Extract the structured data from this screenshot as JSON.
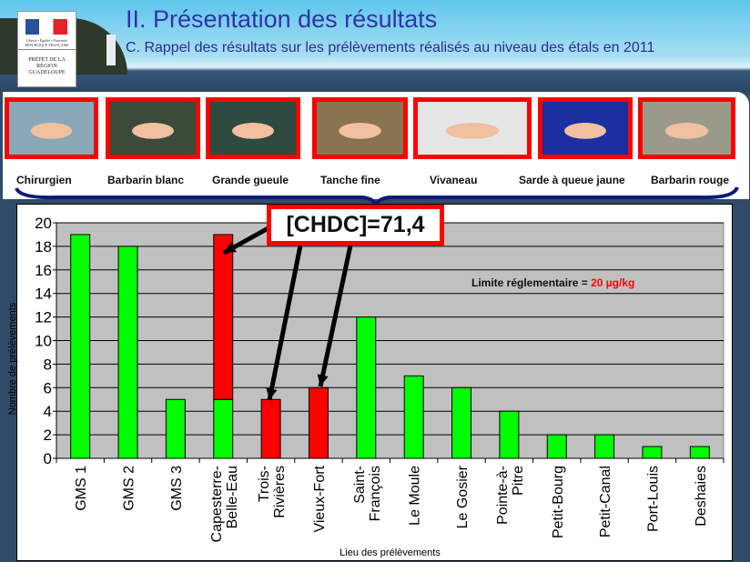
{
  "header": {
    "title": "II. Présentation des résultats",
    "subtitle": "C. Rappel des résultats sur les prélèvements réalisés au niveau des étals en 2011",
    "logo": {
      "republique": "Liberté • Égalité • Fraternité RÉPUBLIQUE FRANÇAISE",
      "prefet": "PRÉFET DE LA RÉGION GUADELOUPE"
    }
  },
  "fish": [
    {
      "label": "Chirurgien",
      "color": "#8aa7b8"
    },
    {
      "label": "Barbarin blanc",
      "color": "#3c4a3a"
    },
    {
      "label": "Grande gueule",
      "color": "#2f4a40"
    },
    {
      "label": "Tanche fine",
      "color": "#8a7350"
    },
    {
      "label": "Vivaneau",
      "color": "#e6e6e6"
    },
    {
      "label": "Sarde à queue jaune",
      "color": "#1a2fa0"
    },
    {
      "label": "Barbarin rouge",
      "color": "#9a9a8a"
    }
  ],
  "callout": "[CHDC]=71,4",
  "chart_data": {
    "type": "bar",
    "stacked": true,
    "categories": [
      "GMS 1",
      "GMS 2",
      "GMS 3",
      "Capesterre-Belle-Eau",
      "Trois-Rivières",
      "Vieux-Fort",
      "Saint-François",
      "Le Moule",
      "Le Gosier",
      "Pointe-à-Pitre",
      "Petit-Bourg",
      "Petit-Canal",
      "Port-Louis",
      "Deshaies"
    ],
    "tick_labels": [
      [
        "GMS 1"
      ],
      [
        "GMS 2"
      ],
      [
        "GMS 3"
      ],
      [
        "Capesterre-",
        "Belle-Eau"
      ],
      [
        "Trois-",
        "Rivières"
      ],
      [
        "Vieux-Fort"
      ],
      [
        "Saint-",
        "François"
      ],
      [
        "Le Moule"
      ],
      [
        "Le Gosier"
      ],
      [
        "Pointe-à-",
        "Pitre"
      ],
      [
        "Petit-Bourg"
      ],
      [
        "Petit-Canal"
      ],
      [
        "Port-Louis"
      ],
      [
        "Deshaies"
      ]
    ],
    "series": [
      {
        "color": "#00ff00",
        "values": [
          19,
          18,
          5,
          5,
          0,
          0,
          12,
          7,
          6,
          4,
          2,
          2,
          1,
          1
        ]
      },
      {
        "color": "#ff0000",
        "values": [
          0,
          0,
          0,
          14,
          5,
          6,
          0,
          0,
          0,
          0,
          0,
          0,
          0,
          0
        ]
      }
    ],
    "xlabel": "Lieu des prélèvements",
    "ylabel": "Nombre de prélèvements",
    "ylim": [
      0,
      20
    ],
    "yticks": [
      0,
      2,
      4,
      6,
      8,
      10,
      12,
      14,
      16,
      18,
      20
    ],
    "grid": true,
    "plot_background": "#c0c0c0",
    "annotation": {
      "text": "Limite réglementaire = ",
      "value": "20 µg/kg",
      "value_color": "#ff0000"
    }
  }
}
